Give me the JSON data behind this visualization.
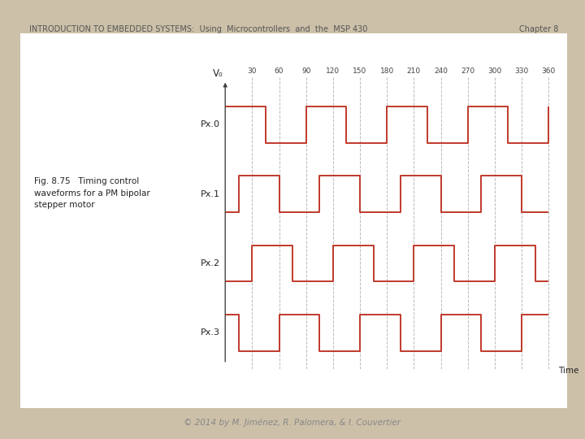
{
  "bg_color": "#ccc0a8",
  "card_color": "#ffffff",
  "header_text": "INTRODUCTION TO EMBEDDED SYSTEMS:  Using  Microcontrollers  and  the  MSP 430",
  "header_right": "Chapter 8",
  "footer_text": "© 2014 by M. Jiménez, R. Palomera, & I. Couvertier",
  "fig_caption": "Fig. 8.75   Timing control\nwaveforms for a PM bipolar\nstepper motor",
  "waveform_color": "#c0392b",
  "grid_color": "#bbbbbb",
  "axis_color": "#444444",
  "tick_labels": [
    30,
    60,
    90,
    120,
    150,
    180,
    210,
    240,
    270,
    300,
    330,
    360
  ],
  "channel_labels": [
    "Px.0",
    "Px.1",
    "Px.2",
    "Px.3"
  ],
  "ylabel": "V₀",
  "xlabel": "Time",
  "waveforms": {
    "Px.0": [
      1,
      1,
      1,
      0,
      0,
      0,
      1,
      1,
      1,
      0,
      0,
      0,
      1,
      1,
      1,
      0,
      0,
      0,
      1,
      1,
      1,
      0,
      0,
      0,
      1
    ],
    "Px.1": [
      0,
      1,
      1,
      1,
      0,
      0,
      0,
      1,
      1,
      1,
      0,
      0,
      0,
      1,
      1,
      1,
      0,
      0,
      0,
      1,
      1,
      1,
      0,
      0,
      0
    ],
    "Px.2": [
      0,
      0,
      1,
      1,
      1,
      0,
      0,
      0,
      1,
      1,
      1,
      0,
      0,
      0,
      1,
      1,
      1,
      0,
      0,
      0,
      1,
      1,
      1,
      0,
      0
    ],
    "Px.3": [
      1,
      0,
      0,
      0,
      1,
      1,
      1,
      0,
      0,
      0,
      1,
      1,
      1,
      0,
      0,
      0,
      1,
      1,
      1,
      0,
      0,
      0,
      1,
      1,
      1
    ]
  },
  "step_size": 15
}
